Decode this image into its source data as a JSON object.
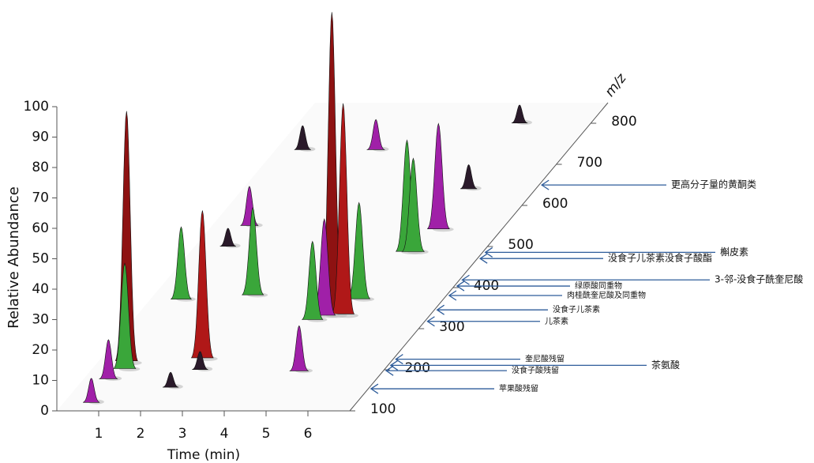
{
  "chart_data": {
    "type": "3d-peaks",
    "xlabel": "Time (min)",
    "ylabel": "Relative Abundance",
    "zlabel": "m/z",
    "xlim": [
      0,
      7
    ],
    "xticks": [
      1,
      2,
      3,
      4,
      5,
      6
    ],
    "ylim": [
      0,
      100
    ],
    "yticks": [
      0,
      10,
      20,
      30,
      40,
      50,
      60,
      70,
      80,
      90,
      100
    ],
    "zlim": [
      100,
      850
    ],
    "zticks": [
      100,
      200,
      300,
      400,
      500,
      600,
      700,
      800
    ],
    "peaks": {
      "x": [
        0.72,
        0.8,
        0.6,
        0.66,
        4.68,
        4.95,
        2.45,
        0.75,
        2.38,
        4.3,
        5.0,
        4.5,
        5.2,
        5.35,
        5.5,
        2.4,
        0.65,
        5.3,
        0.9,
        5.0,
        2.6,
        2.25,
        5.4,
        0.8
      ],
      "z": [
        215,
        200,
        177,
        120,
        330,
        330,
        225,
        370,
        380,
        320,
        370,
        330,
        485,
        485,
        540,
        735,
        735,
        800,
        550,
        196,
        200,
        157,
        640,
        500
      ],
      "values": [
        83,
        35,
        13,
        8,
        100,
        70,
        49,
        24,
        29,
        26,
        32,
        32,
        37,
        31,
        35,
        10,
        8,
        6,
        13,
        15,
        6,
        5,
        8,
        6
      ],
      "colors": [
        "#8e1212",
        "#3aa63a",
        "#a020a8",
        "#a020a8",
        "#8e1212",
        "#b01818",
        "#b01818",
        "#3aa63a",
        "#3aa63a",
        "#3aa63a",
        "#3aa63a",
        "#a020a8",
        "#3aa63a",
        "#3aa63a",
        "#a020a8",
        "#a020a8",
        "#2a1a2a",
        "#2a1a2a",
        "#a020a8",
        "#a020a8",
        "#2a1a2a",
        "#2a1a2a",
        "#2a1a2a",
        "#2a1a2a"
      ]
    },
    "annotations": [
      {
        "text": "更高分子量的黄酮类",
        "mz": 644
      },
      {
        "text": "槲皮素",
        "mz": 480
      },
      {
        "text": "没食子儿茶素没食子酸酯",
        "mz": 465
      },
      {
        "text": "3-邻-没食子酰奎尼酸",
        "mz": 413
      },
      {
        "text": "绿原酸同重物",
        "mz": 398
      },
      {
        "text": "肉桂酰奎尼酸及同重物",
        "mz": 375
      },
      {
        "text": "没食子儿茶素",
        "mz": 340
      },
      {
        "text": "儿茶素",
        "mz": 312
      },
      {
        "text": "奎尼酸残留",
        "mz": 220
      },
      {
        "text": "茶氨酸",
        "mz": 205
      },
      {
        "text": "没食子酸残留",
        "mz": 192
      },
      {
        "text": "苹果酸残留",
        "mz": 148
      }
    ]
  }
}
